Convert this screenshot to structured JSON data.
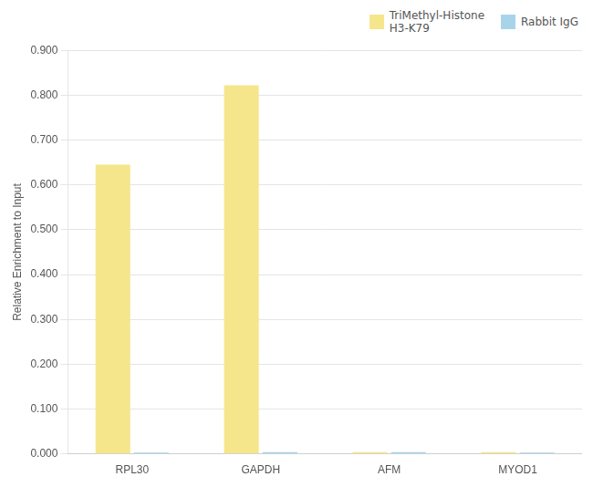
{
  "chart_data": {
    "type": "bar",
    "categories": [
      "RPL30",
      "GAPDH",
      "AFM",
      "MYOD1"
    ],
    "series": [
      {
        "name": "TriMethyl-Histone\nH3-K79",
        "color": "#F5E68C",
        "values": [
          0.645,
          0.822,
          0.004,
          0.004
        ]
      },
      {
        "name": "Rabbit IgG",
        "color": "#A8D4EA",
        "values": [
          0.003,
          0.004,
          0.004,
          0.003
        ]
      }
    ],
    "y_label": "Relative Enrichment to Input",
    "ylim": [
      0.0,
      0.9
    ],
    "yticks": [
      {
        "value": 0.0,
        "label": "0.000"
      },
      {
        "value": 0.1,
        "label": "0.100"
      },
      {
        "value": 0.2,
        "label": "0.200"
      },
      {
        "value": 0.3,
        "label": "0.300"
      },
      {
        "value": 0.4,
        "label": "0.400"
      },
      {
        "value": 0.5,
        "label": "0.500"
      },
      {
        "value": 0.6,
        "label": "0.600"
      },
      {
        "value": 0.7,
        "label": "0.700"
      },
      {
        "value": 0.8,
        "label": "0.800"
      },
      {
        "value": 0.9,
        "label": "0.900"
      }
    ],
    "grid": true,
    "legend": "upper right"
  }
}
